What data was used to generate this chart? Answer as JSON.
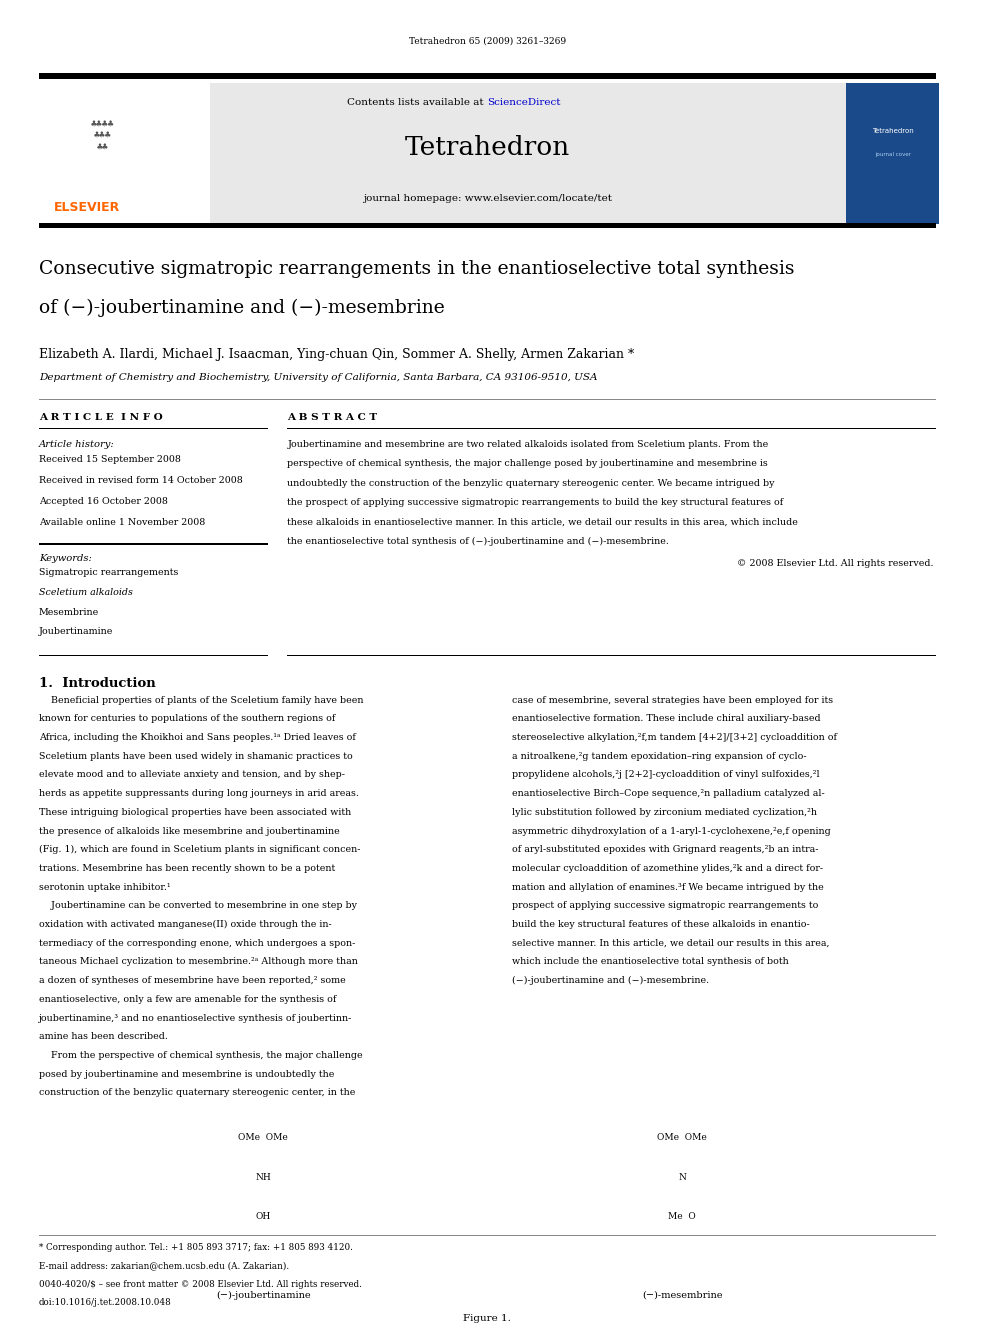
{
  "page_width": 9.92,
  "page_height": 13.23,
  "bg_color": "#ffffff",
  "top_citation": "Tetrahedron 65 (2009) 3261–3269",
  "journal_name": "Tetrahedron",
  "journal_homepage": "journal homepage: www.elsevier.com/locate/tet",
  "contents_line": "Contents lists available at ScienceDirect",
  "article_title_line1": "Consecutive sigmatropic rearrangements in the enantioselective total synthesis",
  "article_title_line2": "of (−)-joubertinamine and (−)-mesembrine",
  "authors": "Elizabeth A. Ilardi, Michael J. Isaacman, Ying-chuan Qin, Sommer A. Shelly, Armen Zakarian *",
  "affiliation": "Department of Chemistry and Biochemistry, University of California, Santa Barbara, CA 93106-9510, USA",
  "article_info_header": "A R T I C L E  I N F O",
  "article_history_label": "Article history:",
  "received_date": "Received 15 September 2008",
  "received_revised": "Received in revised form 14 October 2008",
  "accepted": "Accepted 16 October 2008",
  "available_online": "Available online 1 November 2008",
  "keywords_label": "Keywords:",
  "keywords": [
    "Sigmatropic rearrangements",
    "Sceletium alkaloids",
    "Mesembrine",
    "Joubertinamine"
  ],
  "abstract_header": "A B S T R A C T",
  "abstract_text": "Joubertinamine and mesembrine are two related alkaloids isolated from Sceletium plants. From the perspective of chemical synthesis, the major challenge posed by joubertinamine and mesembrine is undoubtedly the construction of the benzylic quaternary stereogenic center. We became intrigued by the prospect of applying successive sigmatropic rearrangements to build the key structural features of these alkaloids in enantioselective manner. In this article, we detail our results in this area, which include the enantioselective total synthesis of (−)-joubertinamine and (−)-mesembrine.",
  "copyright": "© 2008 Elsevier Ltd. All rights reserved.",
  "intro_header": "1.  Introduction",
  "figure_caption": "Figure 1.",
  "compound1_name": "(−)-joubertinamine",
  "compound2_name": "(−)-mesembrine",
  "footer_corresponding": "* Corresponding author. Tel.: +1 805 893 3717; fax: +1 805 893 4120.",
  "footer_email": "E-mail address: zakarian@chem.ucsb.edu (A. Zakarian).",
  "footer_issn": "0040-4020/$ – see front matter © 2008 Elsevier Ltd. All rights reserved.",
  "footer_doi": "doi:10.1016/j.tet.2008.10.048",
  "elsevier_color": "#ff6600",
  "link_color": "#0000cc",
  "header_bg": "#e8e8e8",
  "intro1_lines": [
    "    Beneficial properties of plants of the Sceletium family have been",
    "known for centuries to populations of the southern regions of",
    "Africa, including the Khoikhoi and Sans peoples.¹ᵃ Dried leaves of",
    "Sceletium plants have been used widely in shamanic practices to",
    "elevate mood and to alleviate anxiety and tension, and by shep-",
    "herds as appetite suppressants during long journeys in arid areas.",
    "These intriguing biological properties have been associated with",
    "the presence of alkaloids like mesembrine and joubertinamine",
    "(Fig. 1), which are found in Sceletium plants in significant concen-",
    "trations. Mesembrine has been recently shown to be a potent",
    "serotonin uptake inhibitor.¹",
    "    Joubertinamine can be converted to mesembrine in one step by",
    "oxidation with activated manganese(II) oxide through the in-",
    "termediacy of the corresponding enone, which undergoes a spon-",
    "taneous Michael cyclization to mesembrine.²ᵃ Although more than",
    "a dozen of syntheses of mesembrine have been reported,² some",
    "enantioselective, only a few are amenable for the synthesis of",
    "joubertinamine,³ and no enantioselective synthesis of joubertinn-",
    "amine has been described.",
    "    From the perspective of chemical synthesis, the major challenge",
    "posed by joubertinamine and mesembrine is undoubtedly the",
    "construction of the benzylic quaternary stereogenic center, in the"
  ],
  "intro2_lines": [
    "case of mesembrine, several strategies have been employed for its",
    "enantioselective formation. These include chiral auxiliary-based",
    "stereoselective alkylation,²f,m tandem [4+2]/[3+2] cycloaddition of",
    "a nitroalkene,²g tandem epoxidation–ring expansion of cyclo-",
    "propylidene alcohols,²j [2+2]-cycloaddition of vinyl sulfoxides,²l",
    "enantioselective Birch–Cope sequence,²n palladium catalyzed al-",
    "lylic substitution followed by zirconium mediated cyclization,²h",
    "asymmetric dihydroxylation of a 1-aryl-1-cyclohexene,²e,f opening",
    "of aryl-substituted epoxides with Grignard reagents,²b an intra-",
    "molecular cycloaddition of azomethine ylides,²k and a direct for-",
    "mation and allylation of enamines.³f We became intrigued by the",
    "prospect of applying successive sigmatropic rearrangements to",
    "build the key structural features of these alkaloids in enantio-",
    "selective manner. In this article, we detail our results in this area,",
    "which include the enantioselective total synthesis of both",
    "(−)-joubertinamine and (−)-mesembrine."
  ]
}
